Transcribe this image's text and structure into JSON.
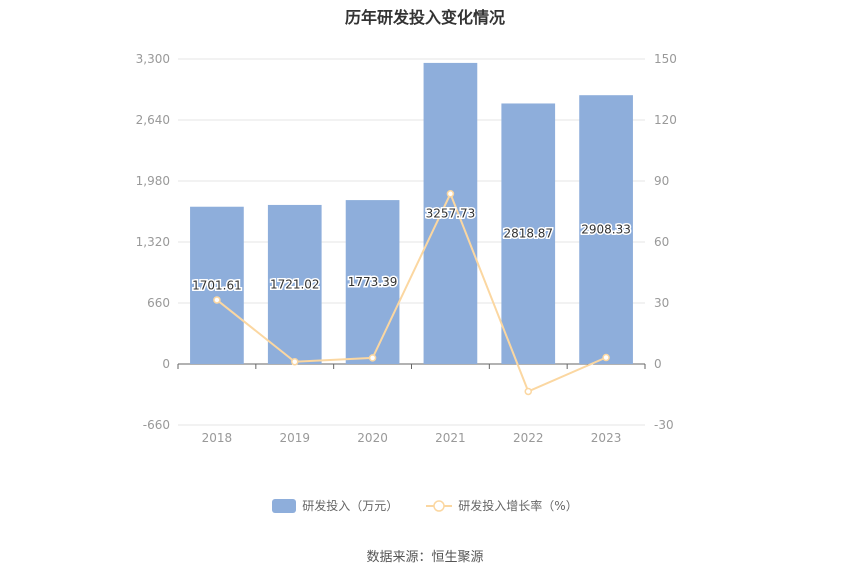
{
  "chart_data": {
    "type": "bar",
    "title": "历年研发投入变化情况",
    "categories": [
      "2018",
      "2019",
      "2020",
      "2021",
      "2022",
      "2023"
    ],
    "series": [
      {
        "name": "研发投入（万元）",
        "type": "bar",
        "axis": "left",
        "values": [
          1701.61,
          1721.02,
          1773.39,
          3257.73,
          2818.87,
          2908.33
        ],
        "labels": [
          "1701.61",
          "1721.02",
          "1773.39",
          "3257.73",
          "2818.87",
          "2908.33"
        ],
        "color": "#8eaedb"
      },
      {
        "name": "研发投入增长率（%）",
        "type": "line",
        "axis": "right",
        "values": [
          31.5,
          1.1,
          3.0,
          83.7,
          -13.5,
          3.2
        ],
        "color": "#fbd7a1"
      }
    ],
    "y_left": {
      "ticks": [
        "3,300",
        "2,640",
        "1,980",
        "1,320",
        "660",
        "0",
        "-660"
      ],
      "ylim": [
        -660,
        3300
      ]
    },
    "y_right": {
      "ticks": [
        "150",
        "120",
        "90",
        "60",
        "30",
        "0",
        "-30"
      ],
      "ylim": [
        -30,
        150
      ]
    },
    "grid": true,
    "legend_position": "bottom"
  },
  "source_text": "数据来源：恒生聚源"
}
